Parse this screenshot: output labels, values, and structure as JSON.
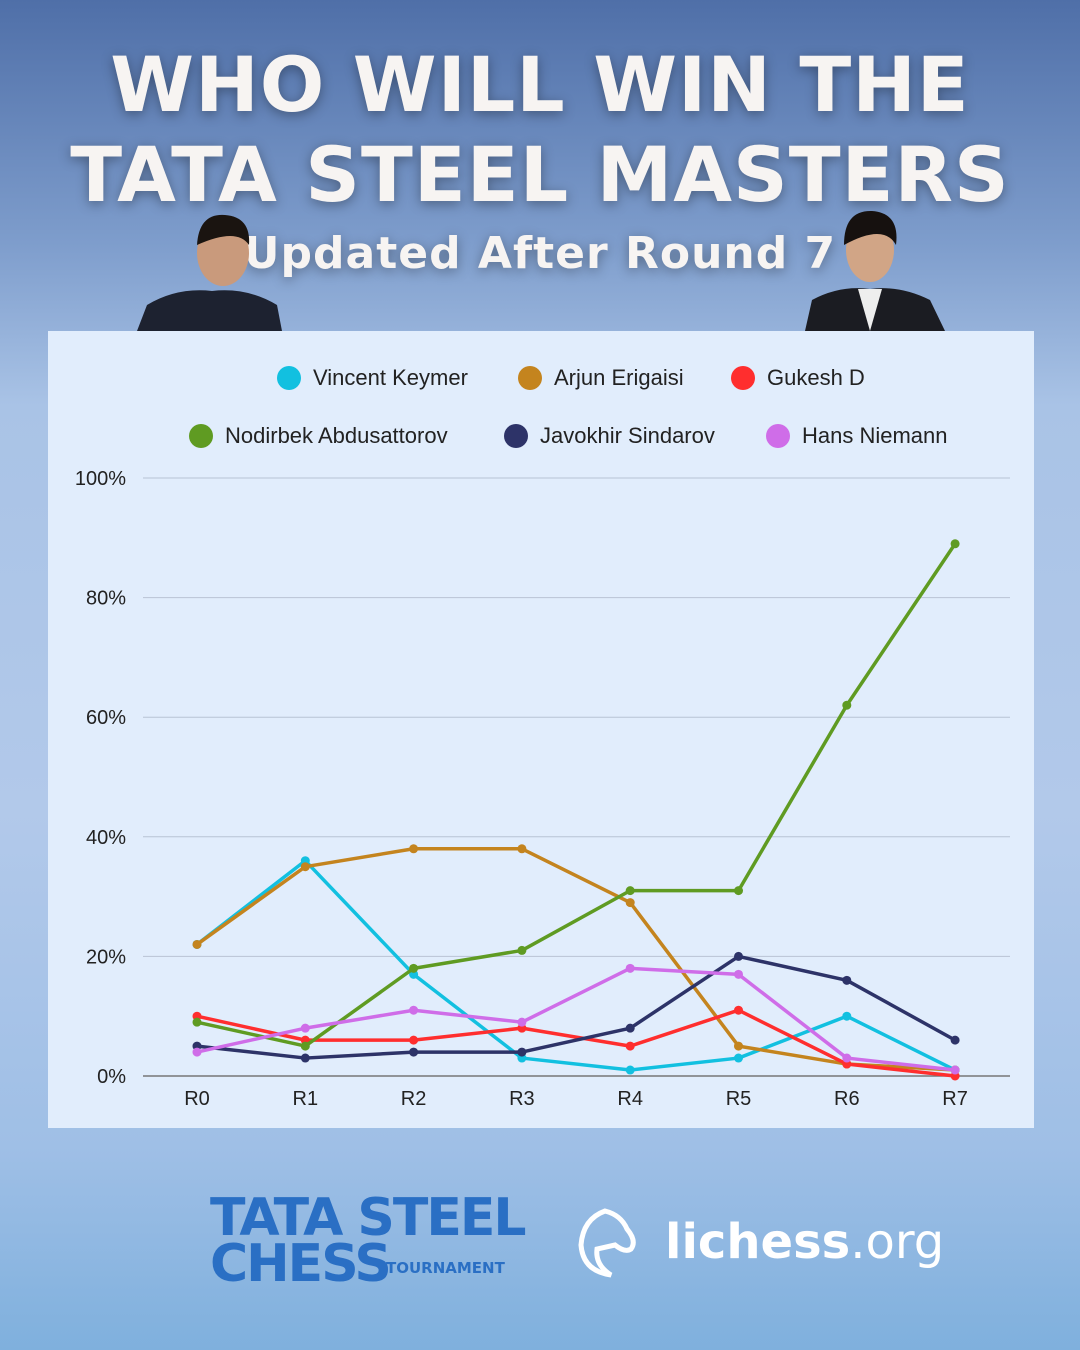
{
  "header": {
    "title_line1": "WHO WILL WIN THE",
    "title_line2": "TATA STEEL MASTERS",
    "subtitle": "Updated After Round 7"
  },
  "footer": {
    "logo1_line1": "TATA STEEL",
    "logo1_line2": "CHESS",
    "logo1_small": "TOURNAMENT",
    "logo2_bold": "lichess",
    "logo2_light": ".org"
  },
  "chart_data": {
    "type": "line",
    "categories": [
      "R0",
      "R1",
      "R2",
      "R3",
      "R4",
      "R5",
      "R6",
      "R7"
    ],
    "ylim": [
      0,
      100
    ],
    "yticks": [
      "0%",
      "20%",
      "40%",
      "60%",
      "80%",
      "100%"
    ],
    "grid": true,
    "legend_position": "top",
    "series": [
      {
        "name": "Vincent Keymer",
        "color": "#12c0e0",
        "values": [
          22,
          36,
          17,
          3,
          1,
          3,
          10,
          1
        ]
      },
      {
        "name": "Arjun Erigaisi",
        "color": "#c4841e",
        "values": [
          22,
          35,
          38,
          38,
          29,
          5,
          2,
          1
        ]
      },
      {
        "name": "Gukesh D",
        "color": "#ff2e2e",
        "values": [
          10,
          6,
          6,
          8,
          5,
          11,
          2,
          0
        ]
      },
      {
        "name": "Nodirbek Abdusattorov",
        "color": "#5f9b22",
        "values": [
          9,
          5,
          18,
          21,
          31,
          31,
          62,
          89
        ]
      },
      {
        "name": "Javokhir Sindarov",
        "color": "#2d3368",
        "values": [
          5,
          3,
          4,
          4,
          8,
          20,
          16,
          6
        ]
      },
      {
        "name": "Hans Niemann",
        "color": "#cf6de8",
        "values": [
          4,
          8,
          11,
          9,
          18,
          17,
          3,
          1
        ]
      }
    ]
  }
}
